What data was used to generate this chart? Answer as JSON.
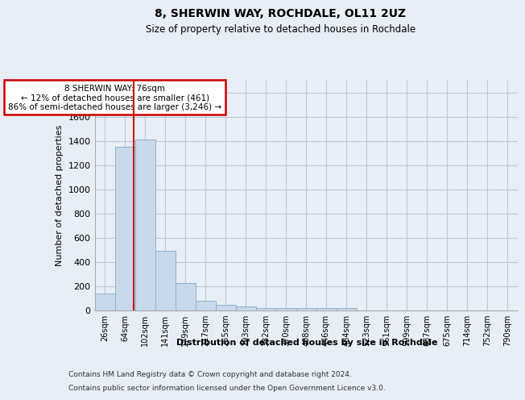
{
  "title1": "8, SHERWIN WAY, ROCHDALE, OL11 2UZ",
  "title2": "Size of property relative to detached houses in Rochdale",
  "xlabel": "Distribution of detached houses by size in Rochdale",
  "ylabel": "Number of detached properties",
  "footer1": "Contains HM Land Registry data © Crown copyright and database right 2024.",
  "footer2": "Contains public sector information licensed under the Open Government Licence v3.0.",
  "bin_labels": [
    "26sqm",
    "64sqm",
    "102sqm",
    "141sqm",
    "179sqm",
    "217sqm",
    "255sqm",
    "293sqm",
    "332sqm",
    "370sqm",
    "408sqm",
    "446sqm",
    "484sqm",
    "523sqm",
    "561sqm",
    "599sqm",
    "637sqm",
    "675sqm",
    "714sqm",
    "752sqm",
    "790sqm"
  ],
  "bin_values": [
    135,
    1350,
    1410,
    490,
    225,
    75,
    45,
    28,
    15,
    20,
    15,
    15,
    15,
    0,
    0,
    0,
    0,
    0,
    0,
    0,
    0
  ],
  "bar_color": "#c9d9ea",
  "bar_edgecolor": "#8ab4ce",
  "property_line_x": 1.42,
  "property_line_color": "#cc0000",
  "annotation_text": "8 SHERWIN WAY: 76sqm\n← 12% of detached houses are smaller (461)\n86% of semi-detached houses are larger (3,246) →",
  "annotation_box_color": "#cc0000",
  "ylim": [
    0,
    1900
  ],
  "yticks": [
    0,
    200,
    400,
    600,
    800,
    1000,
    1200,
    1400,
    1600,
    1800
  ],
  "bg_color": "#e8eef5",
  "plot_bg_color": "#e8eef5",
  "grid_color": "#c0c8d4"
}
